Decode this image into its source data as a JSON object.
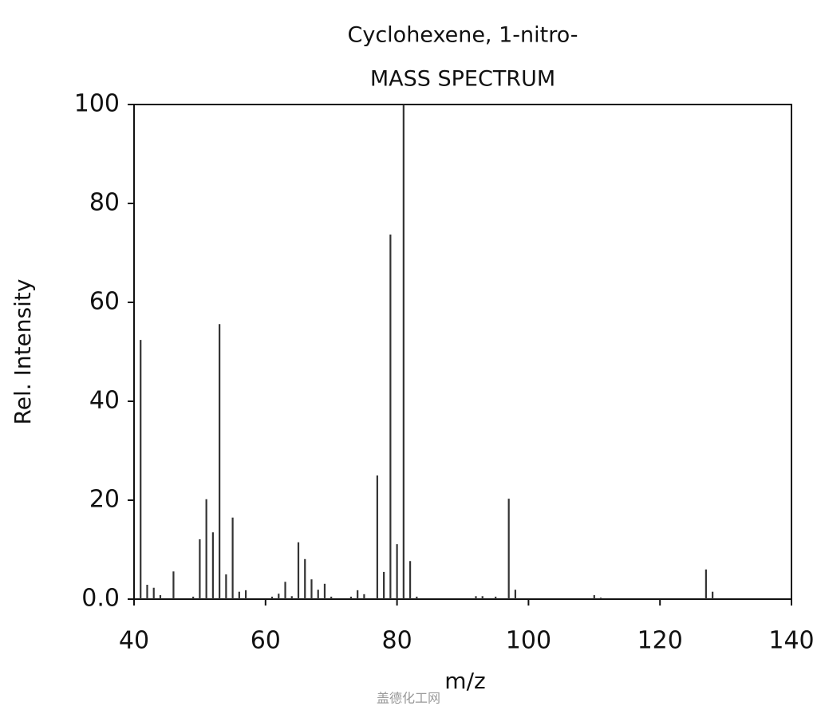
{
  "chart_data": {
    "type": "bar",
    "title": "Cyclohexene, 1-nitro-",
    "subtitle": "MASS SPECTRUM",
    "x_label": "m/z",
    "y_label": "Rel. Intensity",
    "watermark": "盖德化工网",
    "x": [
      41,
      42,
      43,
      44,
      46,
      49,
      50,
      51,
      52,
      53,
      54,
      55,
      56,
      57,
      61,
      62,
      63,
      64,
      65,
      66,
      67,
      68,
      69,
      70,
      73,
      74,
      75,
      77,
      78,
      79,
      80,
      81,
      82,
      83,
      92,
      93,
      95,
      97,
      98,
      110,
      111,
      127,
      128
    ],
    "values": [
      52.4,
      2.9,
      2.3,
      0.8,
      5.6,
      0.5,
      12.1,
      20.2,
      13.5,
      55.6,
      5.0,
      16.5,
      1.5,
      1.8,
      0.5,
      1.1,
      3.5,
      0.6,
      11.5,
      8.1,
      4.0,
      1.9,
      3.1,
      0.5,
      0.5,
      1.8,
      1.0,
      25.0,
      5.5,
      73.7,
      11.1,
      100,
      7.7,
      0.5,
      0.6,
      0.6,
      0.5,
      20.3,
      1.9,
      0.8,
      0.3,
      6.0,
      1.5
    ],
    "color": "#333333",
    "xlim": [
      40,
      140
    ],
    "xticks": [
      40,
      60,
      80,
      100,
      120,
      140
    ],
    "ylim": [
      0,
      100
    ],
    "yticks": [
      {
        "value": 0,
        "label": "0.0"
      },
      20,
      40,
      60,
      80,
      100
    ]
  }
}
